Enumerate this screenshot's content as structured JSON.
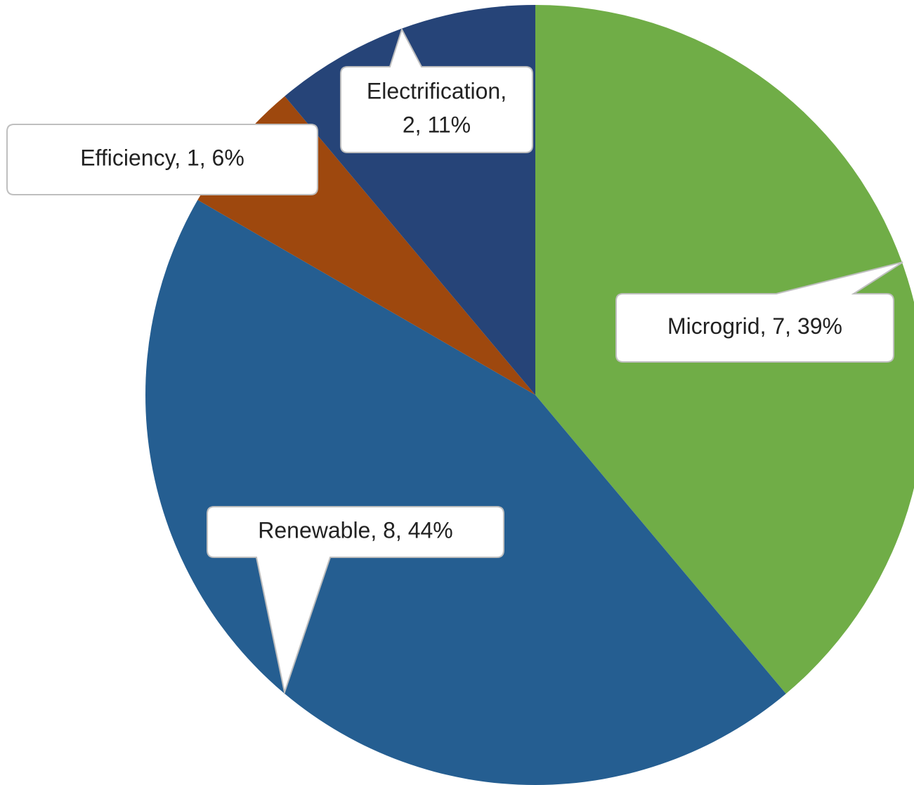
{
  "chart_data": {
    "type": "pie",
    "values": [
      7,
      8,
      1,
      2
    ],
    "value_labels": [
      "Microgrid, 7, 39%",
      "Renewable, 8, 44%",
      "Efficiency, 1, 6%",
      [
        "Electrification,",
        "2, 11%"
      ]
    ],
    "colors": [
      "#70ad47",
      "#255e91",
      "#9e480e",
      "#264478"
    ]
  }
}
